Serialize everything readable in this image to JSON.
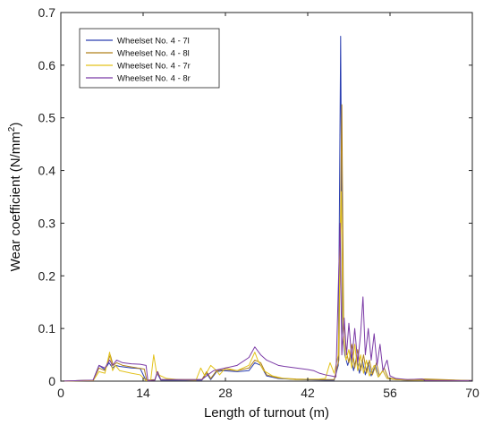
{
  "chart_data": {
    "type": "line",
    "title": "",
    "xlabel": "Length of turnout (m)",
    "ylabel": "Wear coefficient   (N/mm²)",
    "ylabel_main": "Wear coefficient   (N/mm",
    "ylabel_sup": "2",
    "ylabel_tail": ")",
    "xlim": [
      0,
      70
    ],
    "ylim": [
      0,
      0.7
    ],
    "xticks": [
      0,
      14,
      28,
      42,
      56,
      70
    ],
    "yticks": [
      0,
      0.1,
      0.2,
      0.3,
      0.4,
      0.5,
      0.6,
      0.7
    ],
    "xtick_labels": [
      "0",
      "14",
      "28",
      "42",
      "56",
      "70"
    ],
    "ytick_labels": [
      "0",
      "0.1",
      "0.2",
      "0.3",
      "0.4",
      "0.5",
      "0.6",
      "0.7"
    ],
    "grid": false,
    "legend_position": "top-left",
    "series": [
      {
        "name": "Wheelset No. 4 - 7l",
        "color": "#2a3eb1",
        "points": [
          [
            0,
            0
          ],
          [
            5.5,
            0.002
          ],
          [
            6.5,
            0.03
          ],
          [
            7.5,
            0.022
          ],
          [
            8.2,
            0.035
          ],
          [
            8.8,
            0.025
          ],
          [
            9.3,
            0.03
          ],
          [
            10,
            0.028
          ],
          [
            12,
            0.025
          ],
          [
            13.5,
            0.024
          ],
          [
            14.5,
            0.001
          ],
          [
            16,
            0.002
          ],
          [
            16.4,
            0.015
          ],
          [
            17,
            0.002
          ],
          [
            24,
            0.002
          ],
          [
            24.8,
            0.015
          ],
          [
            25.5,
            0.003
          ],
          [
            26.5,
            0.018
          ],
          [
            27.5,
            0.02
          ],
          [
            30,
            0.018
          ],
          [
            32,
            0.02
          ],
          [
            33,
            0.035
          ],
          [
            34,
            0.03
          ],
          [
            35,
            0.01
          ],
          [
            37,
            0.005
          ],
          [
            40,
            0.003
          ],
          [
            45,
            0.002
          ],
          [
            46.5,
            0.002
          ],
          [
            47.2,
            0.03
          ],
          [
            47.6,
            0.655
          ],
          [
            47.9,
            0.1
          ],
          [
            48.3,
            0.05
          ],
          [
            48.8,
            0.03
          ],
          [
            49.3,
            0.05
          ],
          [
            49.8,
            0.02
          ],
          [
            50.3,
            0.045
          ],
          [
            50.8,
            0.015
          ],
          [
            51.3,
            0.04
          ],
          [
            51.8,
            0.012
          ],
          [
            52.3,
            0.035
          ],
          [
            52.8,
            0.01
          ],
          [
            53.5,
            0.03
          ],
          [
            54,
            0.008
          ],
          [
            54.8,
            0.02
          ],
          [
            55.5,
            0.005
          ],
          [
            57,
            0.003
          ],
          [
            59,
            0.002
          ],
          [
            62,
            0.003
          ],
          [
            70,
            0.001
          ]
        ]
      },
      {
        "name": "Wheelset No. 4 - 8l",
        "color": "#b0811a",
        "points": [
          [
            0,
            0
          ],
          [
            5.5,
            0.002
          ],
          [
            6.5,
            0.025
          ],
          [
            7.5,
            0.02
          ],
          [
            8.4,
            0.05
          ],
          [
            8.9,
            0.03
          ],
          [
            9.5,
            0.035
          ],
          [
            10.5,
            0.03
          ],
          [
            13,
            0.025
          ],
          [
            14.2,
            0.023
          ],
          [
            14.6,
            0.002
          ],
          [
            16,
            0.003
          ],
          [
            16.5,
            0.018
          ],
          [
            17,
            0.003
          ],
          [
            24,
            0.003
          ],
          [
            24.8,
            0.018
          ],
          [
            25.5,
            0.005
          ],
          [
            26.5,
            0.02
          ],
          [
            28,
            0.022
          ],
          [
            30,
            0.02
          ],
          [
            32,
            0.025
          ],
          [
            33,
            0.04
          ],
          [
            34,
            0.035
          ],
          [
            35,
            0.012
          ],
          [
            37,
            0.006
          ],
          [
            40,
            0.004
          ],
          [
            45,
            0.003
          ],
          [
            46.5,
            0.003
          ],
          [
            47.3,
            0.04
          ],
          [
            47.8,
            0.525
          ],
          [
            48.1,
            0.12
          ],
          [
            48.5,
            0.06
          ],
          [
            49,
            0.035
          ],
          [
            49.5,
            0.07
          ],
          [
            50,
            0.025
          ],
          [
            50.5,
            0.06
          ],
          [
            51,
            0.02
          ],
          [
            51.5,
            0.05
          ],
          [
            52,
            0.015
          ],
          [
            52.5,
            0.04
          ],
          [
            53,
            0.012
          ],
          [
            53.7,
            0.035
          ],
          [
            54.2,
            0.01
          ],
          [
            55,
            0.025
          ],
          [
            55.7,
            0.006
          ],
          [
            57,
            0.004
          ],
          [
            59,
            0.003
          ],
          [
            62,
            0.004
          ],
          [
            70,
            0.001
          ]
        ]
      },
      {
        "name": "Wheelset No. 4 - 7r",
        "color": "#e3c21b",
        "points": [
          [
            0,
            0
          ],
          [
            5.5,
            0.001
          ],
          [
            6.5,
            0.018
          ],
          [
            7.5,
            0.015
          ],
          [
            8.3,
            0.055
          ],
          [
            8.8,
            0.02
          ],
          [
            9.3,
            0.03
          ],
          [
            10,
            0.02
          ],
          [
            12,
            0.015
          ],
          [
            13.5,
            0.012
          ],
          [
            14.5,
            0.001
          ],
          [
            15.3,
            0.002
          ],
          [
            15.8,
            0.05
          ],
          [
            16.3,
            0.015
          ],
          [
            17,
            0.01
          ],
          [
            18,
            0.005
          ],
          [
            20,
            0.003
          ],
          [
            23,
            0.002
          ],
          [
            23.8,
            0.025
          ],
          [
            24.5,
            0.01
          ],
          [
            25.5,
            0.03
          ],
          [
            26.5,
            0.02
          ],
          [
            27,
            0.012
          ],
          [
            28,
            0.025
          ],
          [
            30,
            0.02
          ],
          [
            32,
            0.03
          ],
          [
            33,
            0.055
          ],
          [
            33.5,
            0.04
          ],
          [
            34.5,
            0.02
          ],
          [
            36,
            0.01
          ],
          [
            38,
            0.005
          ],
          [
            40,
            0.003
          ],
          [
            44,
            0.004
          ],
          [
            45,
            0.005
          ],
          [
            45.8,
            0.035
          ],
          [
            46.5,
            0.015
          ],
          [
            47.2,
            0.05
          ],
          [
            47.7,
            0.36
          ],
          [
            48,
            0.09
          ],
          [
            48.5,
            0.04
          ],
          [
            49,
            0.06
          ],
          [
            49.5,
            0.025
          ],
          [
            50,
            0.07
          ],
          [
            50.5,
            0.02
          ],
          [
            51,
            0.05
          ],
          [
            51.5,
            0.015
          ],
          [
            52,
            0.04
          ],
          [
            52.5,
            0.01
          ],
          [
            53.3,
            0.03
          ],
          [
            54,
            0.008
          ],
          [
            54.8,
            0.02
          ],
          [
            55.5,
            0.005
          ],
          [
            57,
            0.003
          ],
          [
            59,
            0.002
          ],
          [
            62,
            0.002
          ],
          [
            70,
            0.001
          ]
        ]
      },
      {
        "name": "Wheelset No. 4 - 8r",
        "color": "#7b3aa6",
        "points": [
          [
            0,
            0
          ],
          [
            5.5,
            0.002
          ],
          [
            6.5,
            0.03
          ],
          [
            7.5,
            0.025
          ],
          [
            8.3,
            0.04
          ],
          [
            8.8,
            0.03
          ],
          [
            9.5,
            0.04
          ],
          [
            10.5,
            0.035
          ],
          [
            12,
            0.033
          ],
          [
            13.5,
            0.032
          ],
          [
            14.5,
            0.03
          ],
          [
            14.8,
            0.001
          ],
          [
            16,
            0.002
          ],
          [
            16.4,
            0.018
          ],
          [
            17,
            0.003
          ],
          [
            24,
            0.003
          ],
          [
            25,
            0.012
          ],
          [
            26,
            0.02
          ],
          [
            28,
            0.025
          ],
          [
            30,
            0.03
          ],
          [
            32,
            0.045
          ],
          [
            33,
            0.065
          ],
          [
            34,
            0.05
          ],
          [
            35,
            0.04
          ],
          [
            37,
            0.03
          ],
          [
            38,
            0.028
          ],
          [
            40,
            0.025
          ],
          [
            42,
            0.022
          ],
          [
            43,
            0.02
          ],
          [
            44,
            0.015
          ],
          [
            45,
            0.012
          ],
          [
            46,
            0.01
          ],
          [
            46.8,
            0.008
          ],
          [
            47.5,
            0.3
          ],
          [
            47.8,
            0.05
          ],
          [
            48.2,
            0.12
          ],
          [
            48.6,
            0.05
          ],
          [
            49,
            0.11
          ],
          [
            49.5,
            0.04
          ],
          [
            50,
            0.1
          ],
          [
            50.5,
            0.035
          ],
          [
            51,
            0.09
          ],
          [
            51.4,
            0.16
          ],
          [
            51.8,
            0.05
          ],
          [
            52.3,
            0.1
          ],
          [
            52.8,
            0.04
          ],
          [
            53.3,
            0.09
          ],
          [
            53.8,
            0.03
          ],
          [
            54.3,
            0.07
          ],
          [
            54.8,
            0.02
          ],
          [
            55.5,
            0.04
          ],
          [
            56,
            0.01
          ],
          [
            57,
            0.005
          ],
          [
            59,
            0.003
          ],
          [
            61.5,
            0.004
          ],
          [
            62,
            0.001
          ],
          [
            70,
            0.001
          ]
        ]
      }
    ]
  }
}
